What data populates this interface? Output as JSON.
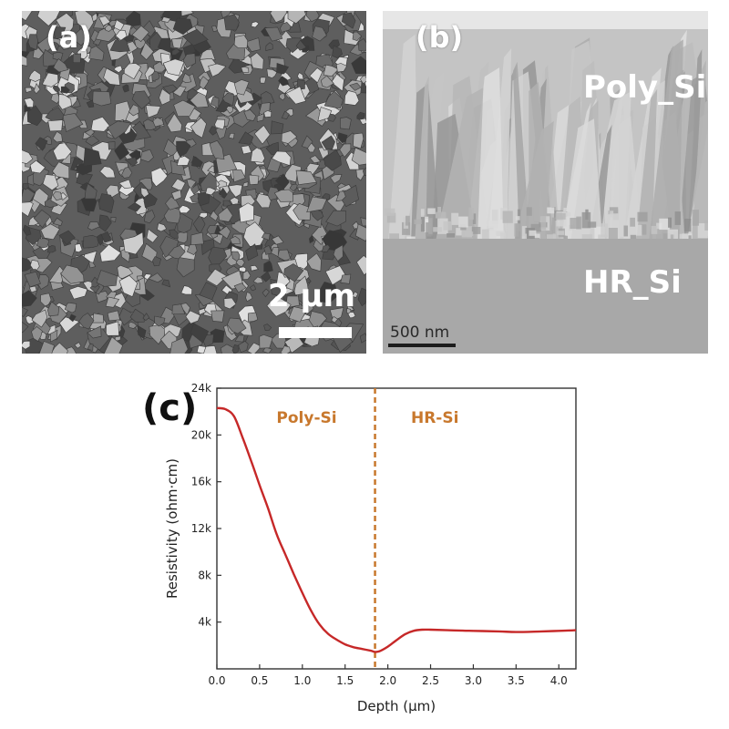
{
  "panels": {
    "a": {
      "letter": "(a)",
      "scale_label": "2 μm"
    },
    "b": {
      "letter": "(b)",
      "layer_top": "Poly_Si",
      "layer_bottom": "HR_Si",
      "scale_label": "500 nm"
    },
    "c": {
      "letter": "(c)"
    }
  },
  "colors": {
    "curve": "#c62828",
    "divider": "#c8782d",
    "region_text": "#c8782d"
  },
  "chart_data": {
    "type": "line",
    "xlabel": "Depth (μm)",
    "ylabel": "Resistivity (ohm·cm)",
    "xlim": [
      0,
      4.2
    ],
    "ylim": [
      0,
      24000
    ],
    "x_ticks": [
      0.0,
      0.5,
      1.0,
      1.5,
      2.0,
      2.5,
      3.0,
      3.5,
      4.0
    ],
    "x_tick_labels": [
      "0.0",
      "0.5",
      "1.0",
      "1.5",
      "2.0",
      "2.5",
      "3.0",
      "3.5",
      "4.0"
    ],
    "y_ticks": [
      4000,
      8000,
      12000,
      16000,
      20000,
      24000
    ],
    "y_tick_labels": [
      "4k",
      "8k",
      "12k",
      "16k",
      "20k",
      "24k"
    ],
    "grid": false,
    "series": [
      {
        "x": [
          0.0,
          0.1,
          0.2,
          0.3,
          0.4,
          0.5,
          0.6,
          0.7,
          0.8,
          0.9,
          1.0,
          1.1,
          1.2,
          1.3,
          1.4,
          1.5,
          1.6,
          1.7,
          1.8,
          1.85,
          1.9,
          2.0,
          2.1,
          2.2,
          2.3,
          2.4,
          2.5,
          2.7,
          3.0,
          3.3,
          3.5,
          3.8,
          4.0,
          4.2
        ],
        "y": [
          22300,
          22200,
          21600,
          19800,
          17800,
          15700,
          13700,
          11500,
          9800,
          8100,
          6500,
          5000,
          3800,
          3000,
          2500,
          2100,
          1850,
          1700,
          1550,
          1450,
          1500,
          1900,
          2450,
          2950,
          3250,
          3350,
          3350,
          3300,
          3250,
          3200,
          3150,
          3200,
          3250,
          3300
        ]
      }
    ],
    "vline": {
      "x": 1.85,
      "style": "dashed"
    },
    "annotations": [
      {
        "text": "Poly-Si",
        "x": 1.05,
        "y": 21500
      },
      {
        "text": "HR-Si",
        "x": 2.55,
        "y": 21500
      }
    ]
  }
}
